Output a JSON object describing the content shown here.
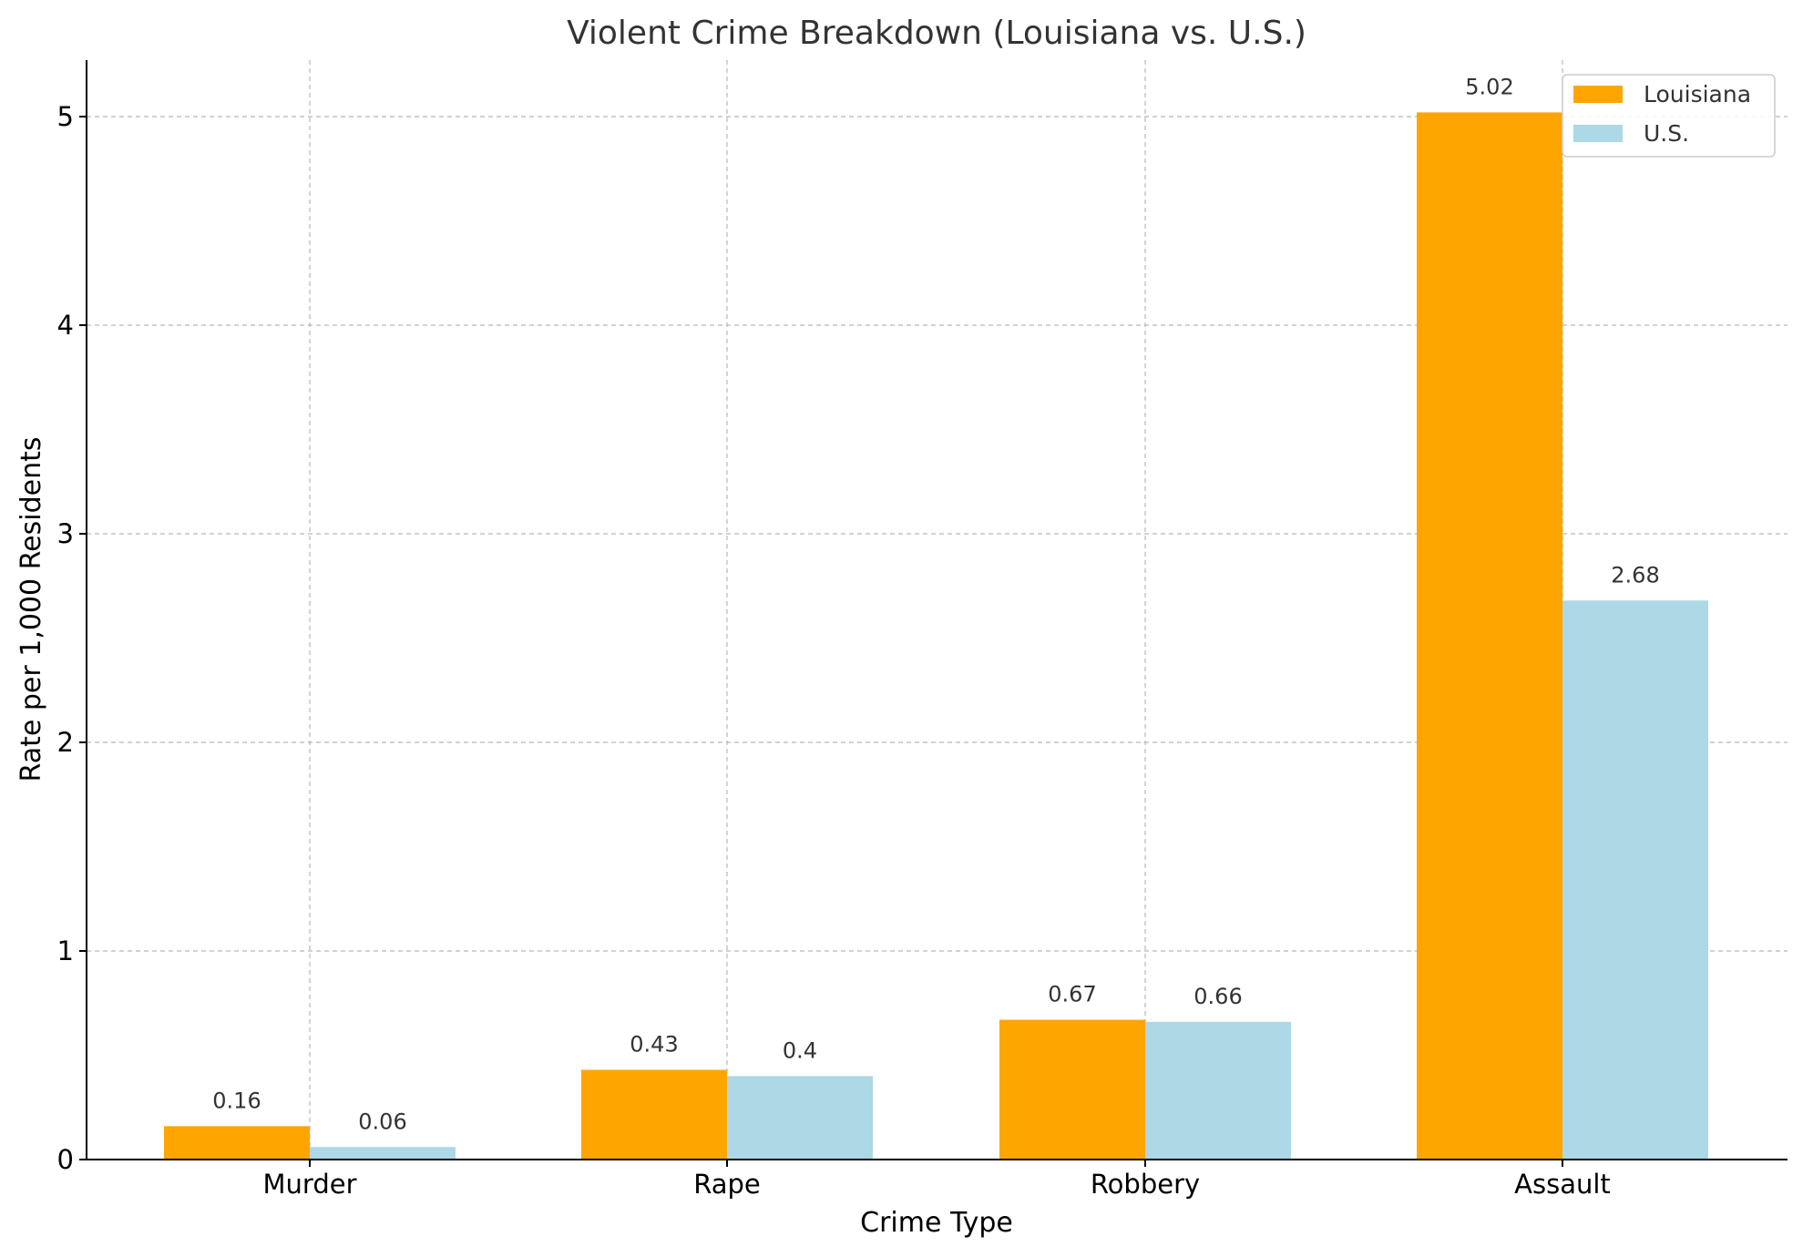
{
  "chart_data": {
    "type": "bar",
    "title": "Violent Crime Breakdown (Louisiana vs. U.S.)",
    "xlabel": "Crime Type",
    "ylabel": "Rate per 1,000 Residents",
    "categories": [
      "Murder",
      "Rape",
      "Robbery",
      "Assault"
    ],
    "series": [
      {
        "name": "Louisiana",
        "color": "#FFA500",
        "values": [
          0.16,
          0.43,
          0.67,
          5.02
        ],
        "labels": [
          "0.16",
          "0.43",
          "0.67",
          "5.02"
        ]
      },
      {
        "name": "U.S.",
        "color": "#ADD8E6",
        "values": [
          0.06,
          0.4,
          0.66,
          2.68
        ],
        "labels": [
          "0.06",
          "0.4",
          "0.66",
          "2.68"
        ]
      }
    ],
    "yticks": [
      0,
      1,
      2,
      3,
      4,
      5
    ],
    "ylim": [
      0,
      5.27
    ],
    "grid": true,
    "legend_position": "top-right"
  }
}
